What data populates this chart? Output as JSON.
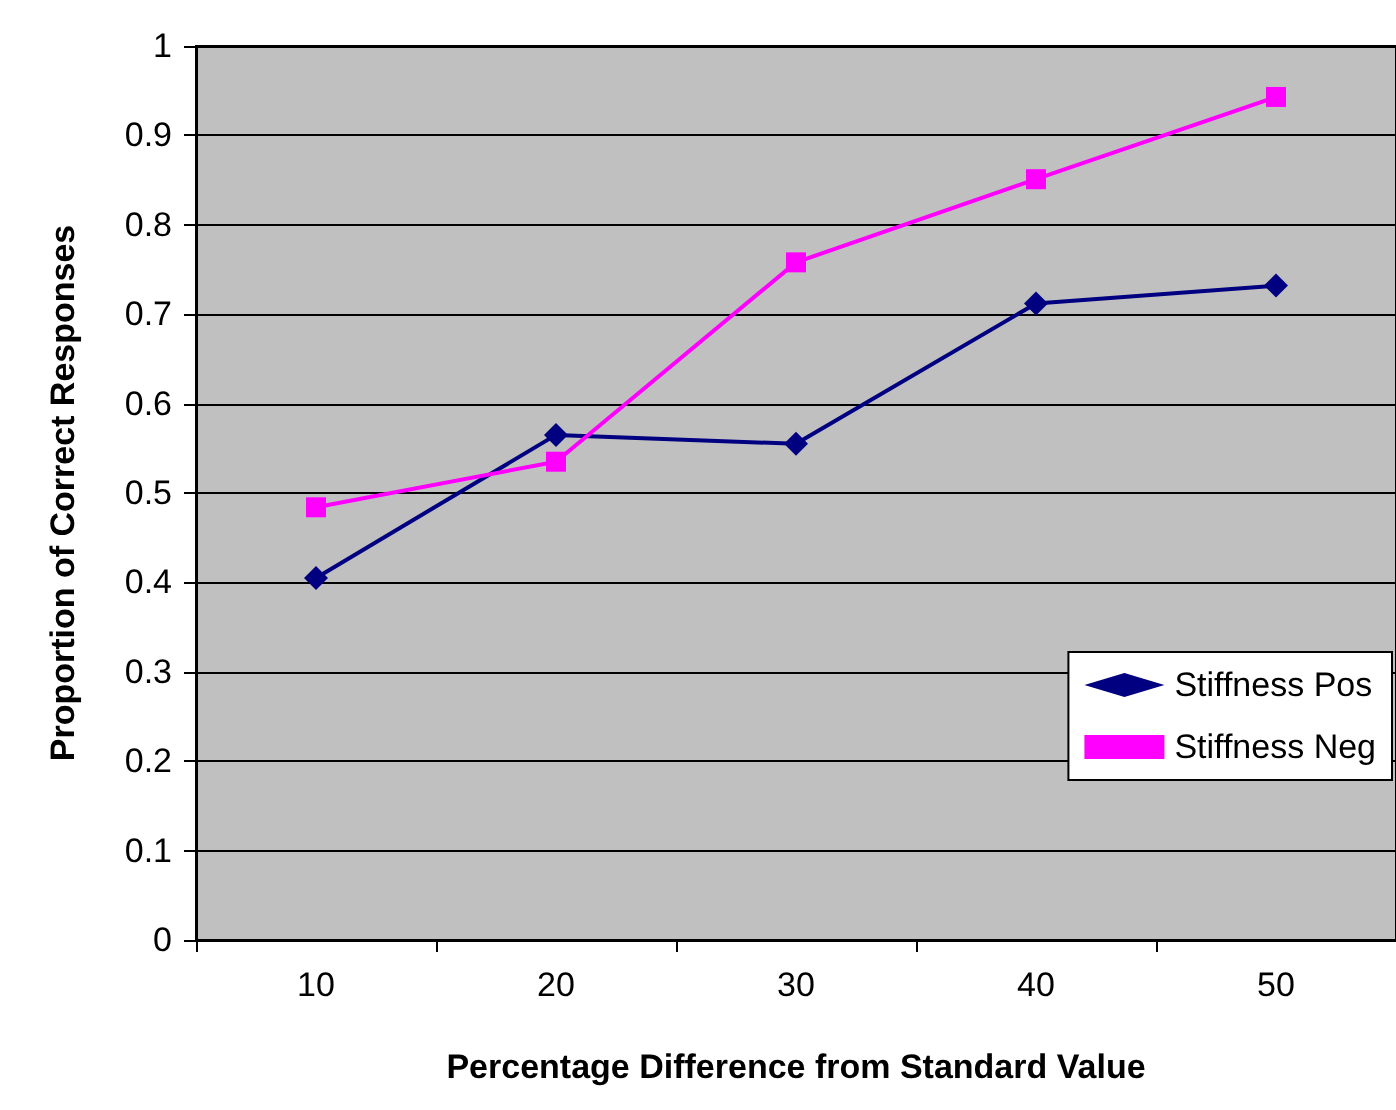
{
  "chart_data": {
    "type": "line",
    "xlabel": "Percentage Difference from Standard Value",
    "ylabel": "Proportion of Correct Responses",
    "categories": [
      "10",
      "20",
      "30",
      "40",
      "50"
    ],
    "series": [
      {
        "name": "Stiffness Pos",
        "color": "#000080",
        "marker": "diamond",
        "values": [
          0.405,
          0.565,
          0.555,
          0.712,
          0.732
        ]
      },
      {
        "name": "Stiffness Neg",
        "color": "#ff00ff",
        "marker": "square",
        "values": [
          0.484,
          0.535,
          0.758,
          0.851,
          0.943
        ]
      }
    ],
    "ylim": [
      0,
      1
    ],
    "yticks": [
      0,
      0.1,
      0.2,
      0.3,
      0.4,
      0.5,
      0.6,
      0.7,
      0.8,
      0.9,
      1
    ],
    "grid": "y",
    "legend": "bottom right",
    "line_style": "solid"
  }
}
